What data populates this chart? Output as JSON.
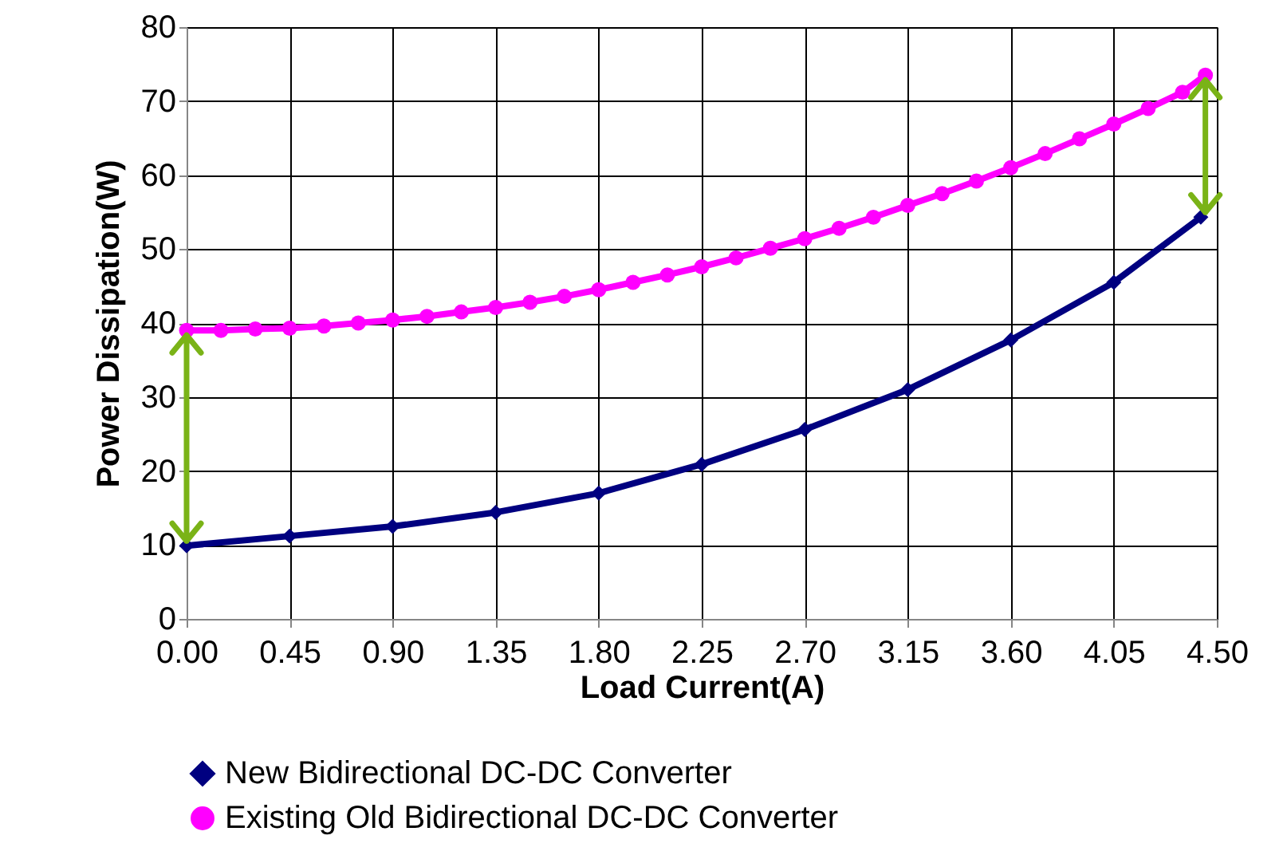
{
  "chart_data": {
    "type": "line",
    "xlabel": "Load Current(A)",
    "ylabel": "Power Dissipation(W)",
    "xlim": [
      0,
      4.5
    ],
    "ylim": [
      0,
      80
    ],
    "xticks": [
      {
        "value": 0,
        "label": "0.00"
      },
      {
        "value": 0.45,
        "label": "0.45"
      },
      {
        "value": 0.9,
        "label": "0.90"
      },
      {
        "value": 1.35,
        "label": "1.35"
      },
      {
        "value": 1.8,
        "label": "1.80"
      },
      {
        "value": 2.25,
        "label": "2.25"
      },
      {
        "value": 2.7,
        "label": "2.70"
      },
      {
        "value": 3.15,
        "label": "3.15"
      },
      {
        "value": 3.6,
        "label": "3.60"
      },
      {
        "value": 4.05,
        "label": "4.05"
      },
      {
        "value": 4.5,
        "label": "4.50"
      }
    ],
    "yticks": [
      0,
      10,
      20,
      30,
      40,
      50,
      60,
      70,
      80
    ],
    "grid": true,
    "legend": "bottom",
    "series": [
      {
        "name": "New Bidirectional DC-DC Converter",
        "color": "#000080",
        "marker": "diamond",
        "x": [
          0,
          0.45,
          0.9,
          1.35,
          1.8,
          2.25,
          2.7,
          3.15,
          3.6,
          4.05,
          4.43
        ],
        "values": [
          9.9,
          11.2,
          12.5,
          14.4,
          17.0,
          20.9,
          25.6,
          31.0,
          37.7,
          45.5,
          54.3
        ]
      },
      {
        "name": "Existing Old Bidirectional DC-DC Converter",
        "color": "#ff00ff",
        "marker": "circle",
        "x": [
          0,
          0.15,
          0.3,
          0.45,
          0.6,
          0.75,
          0.9,
          1.05,
          1.2,
          1.35,
          1.5,
          1.65,
          1.8,
          1.95,
          2.1,
          2.25,
          2.4,
          2.55,
          2.7,
          2.85,
          3.0,
          3.15,
          3.3,
          3.45,
          3.6,
          3.75,
          3.9,
          4.05,
          4.2,
          4.35,
          4.45
        ],
        "values": [
          39.0,
          39.0,
          39.2,
          39.3,
          39.6,
          40.0,
          40.4,
          40.9,
          41.5,
          42.1,
          42.8,
          43.6,
          44.5,
          45.5,
          46.5,
          47.6,
          48.8,
          50.1,
          51.4,
          52.8,
          54.3,
          55.9,
          57.5,
          59.2,
          61.0,
          62.9,
          64.9,
          66.9,
          69.0,
          71.2,
          73.5
        ]
      }
    ]
  }
}
